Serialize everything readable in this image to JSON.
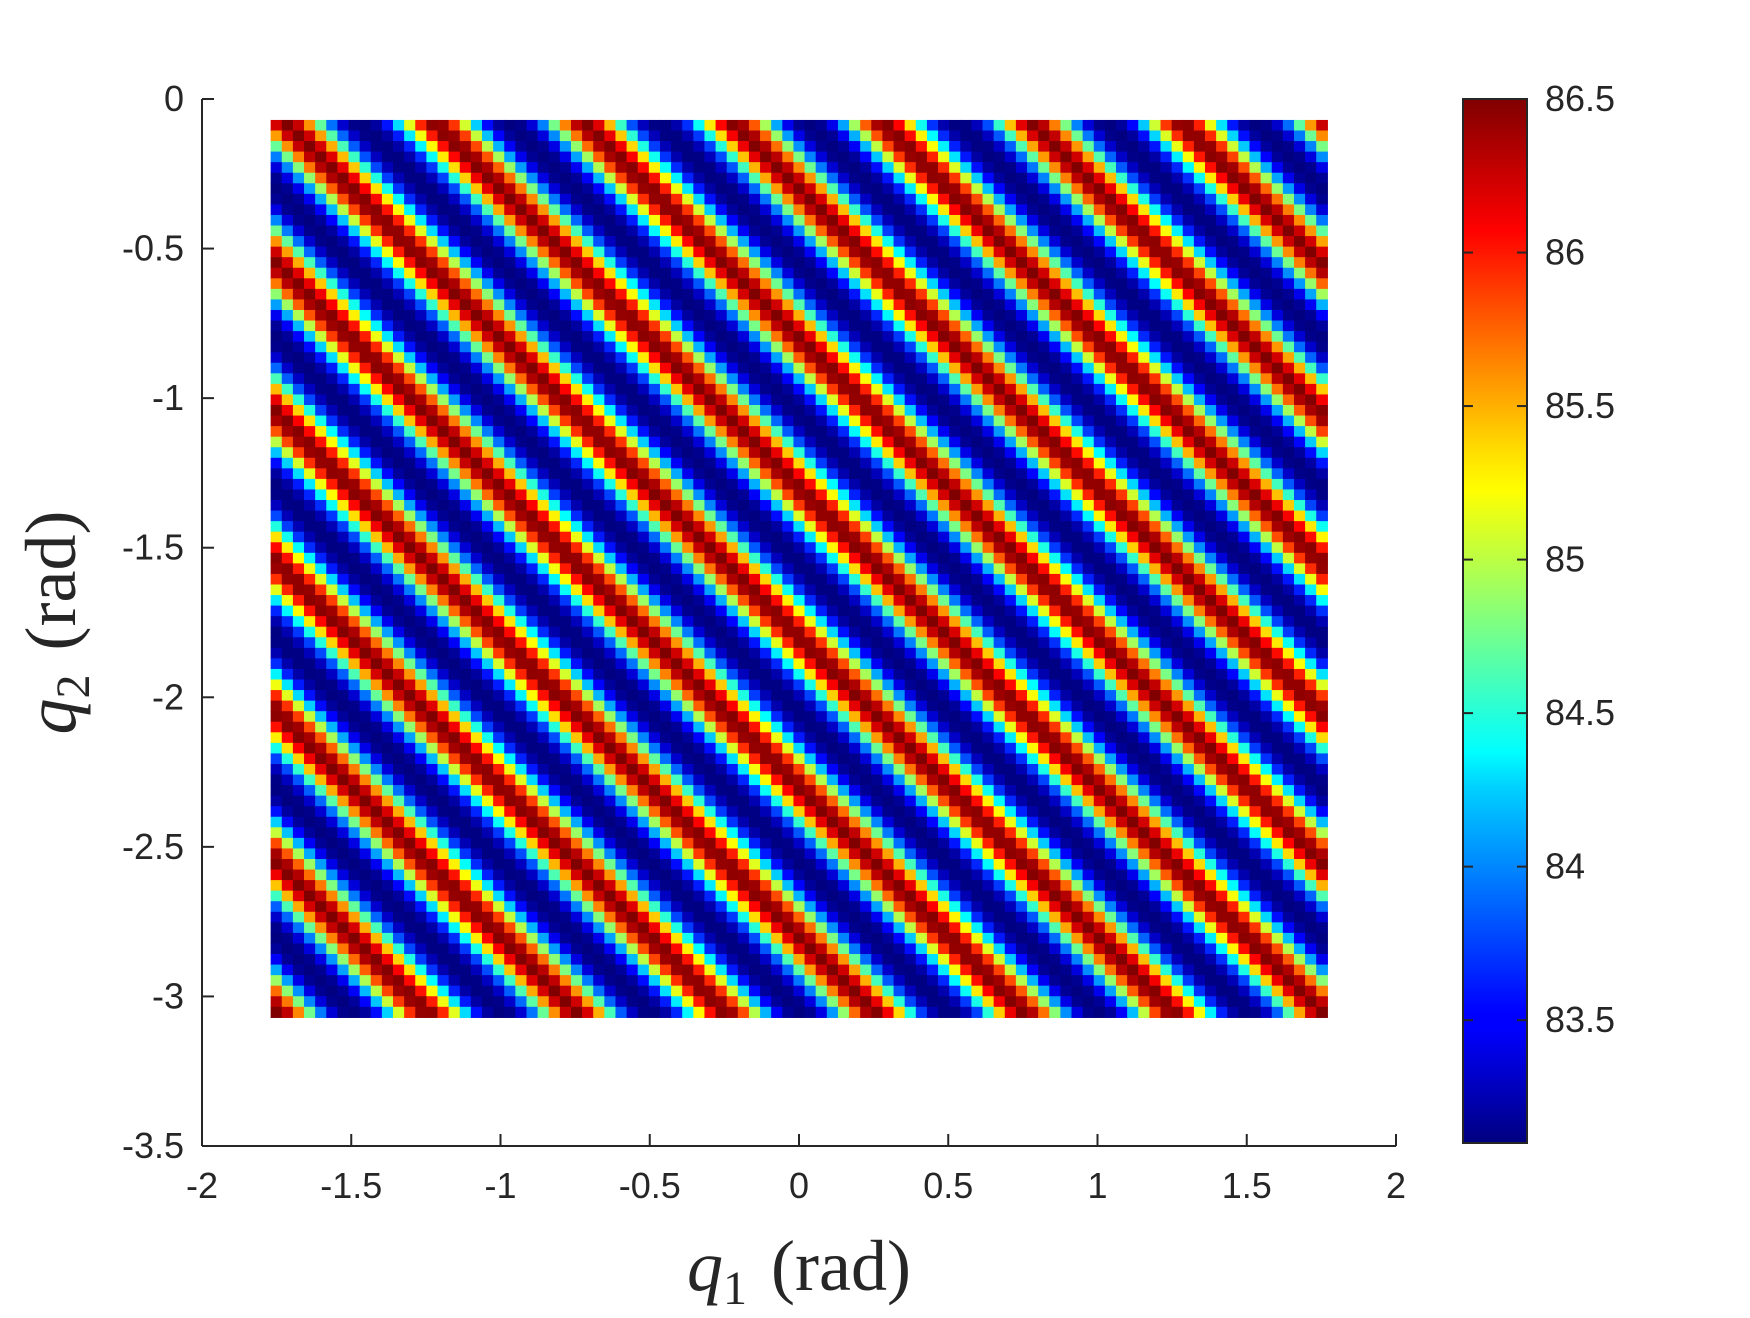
{
  "chart_data": {
    "type": "heatmap",
    "title": "",
    "xlabel": {
      "var": "q",
      "sub": "1",
      "unit": "(rad)"
    },
    "ylabel": {
      "var": "q",
      "sub": "2",
      "unit": "(rad)"
    },
    "xlim": [
      -2,
      2
    ],
    "ylim": [
      -3.5,
      0
    ],
    "xticks": [
      -2,
      -1.5,
      -1,
      -0.5,
      0,
      0.5,
      1,
      1.5,
      2
    ],
    "xtick_labels": [
      "-2",
      "-1.5",
      "-1",
      "-0.5",
      "0",
      "0.5",
      "1",
      "1.5",
      "2"
    ],
    "yticks": [
      0,
      -0.5,
      -1,
      -1.5,
      -2,
      -2.5,
      -3,
      -3.5
    ],
    "ytick_labels": [
      "0",
      "-0.5",
      "-1",
      "-1.5",
      "-2",
      "-2.5",
      "-3",
      "-3.5"
    ],
    "data_extent": {
      "x": [
        -1.77,
        1.77
      ],
      "y": [
        -3.07,
        -0.07
      ]
    },
    "grid": {
      "nx": 95,
      "ny": 85
    },
    "field": {
      "description_formula": "value = min + (max - min) * band(((q1 + q2) * 2 + phase) mod 1)",
      "period_along_sum": 0.5,
      "ridge_at_sum": -0.3,
      "min": 83.1,
      "max": 86.5
    },
    "colormap": "jet",
    "grid_on": false,
    "colorbar": {
      "range": [
        83.1,
        86.5
      ],
      "ticks": [
        86.5,
        86,
        85.5,
        85,
        84.5,
        84,
        83.5
      ],
      "tick_labels": [
        "86.5",
        "86",
        "85.5",
        "85",
        "84.5",
        "84",
        "83.5"
      ],
      "placement": "right"
    }
  }
}
